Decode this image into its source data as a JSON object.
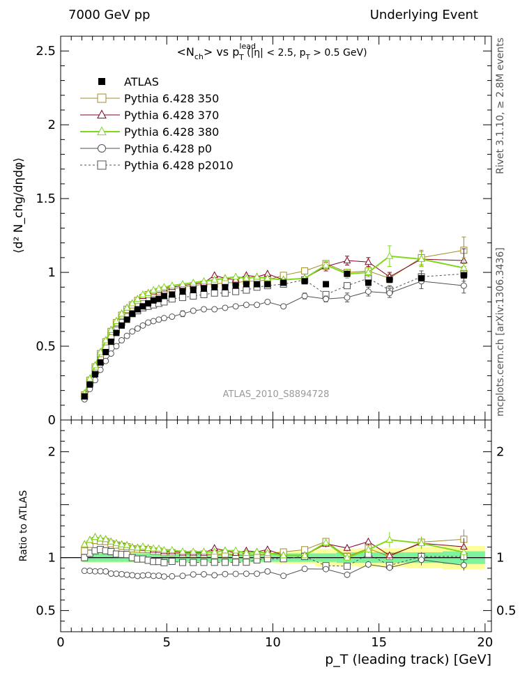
{
  "header": {
    "left": "7000 GeV pp",
    "right": "Underlying Event"
  },
  "side": {
    "top": "Rivet 3.1.10, ≥ 2.8M events",
    "bottom": "mcplots.cern.ch [arXiv:1306.3436]"
  },
  "title": {
    "part1": "<N",
    "part1_sub": "ch",
    "part2": "> vs p",
    "part2_sup": "lead",
    "part2_sub": "T",
    "part3": " (|η| < 2.5, p",
    "part3_sub": "T",
    "part4": " > 0.5 GeV)"
  },
  "ylabel_main": "⟨d² N_chg/dηdφ⟩",
  "ylabel_ratio": "Ratio to ATLAS",
  "xlabel": "p_T (leading track) [GeV]",
  "watermark": "ATLAS_2010_S8894728",
  "colors": {
    "atlas": "#000000",
    "p350": "#a08c28",
    "p370": "#800020",
    "p380": "#80d81a",
    "p0": "#505050",
    "p2010": "#505050",
    "band_inner": "#7ef29c",
    "band_outer": "#fdfd9a"
  },
  "chart_data": {
    "type": "scatter",
    "x": [
      1.125,
      1.375,
      1.625,
      1.875,
      2.125,
      2.375,
      2.625,
      2.875,
      3.125,
      3.375,
      3.625,
      3.875,
      4.125,
      4.375,
      4.625,
      4.875,
      5.25,
      5.75,
      6.25,
      6.75,
      7.25,
      7.75,
      8.25,
      8.75,
      9.25,
      9.75,
      10.5,
      11.5,
      12.5,
      13.5,
      14.5,
      15.5,
      17.0,
      19.0
    ],
    "xlim": [
      0,
      20.3
    ],
    "ylim_main": [
      0,
      2.6
    ],
    "ylim_ratio": [
      0.3,
      2.3
    ],
    "x_ticks": [
      0,
      5,
      10,
      15,
      20
    ],
    "y_ticks_main": [
      0,
      0.5,
      1,
      1.5,
      2,
      2.5
    ],
    "y_ticks_ratio": [
      0.5,
      1,
      2
    ],
    "series": [
      {
        "name": "ATLAS",
        "key": "atlas",
        "marker": "filled-square",
        "values": [
          0.16,
          0.24,
          0.31,
          0.39,
          0.46,
          0.53,
          0.59,
          0.64,
          0.68,
          0.72,
          0.75,
          0.77,
          0.79,
          0.81,
          0.82,
          0.84,
          0.85,
          0.87,
          0.88,
          0.89,
          0.9,
          0.9,
          0.91,
          0.92,
          0.92,
          0.92,
          0.93,
          0.94,
          0.92,
          0.99,
          0.93,
          0.95,
          0.96,
          0.98
        ]
      },
      {
        "name": "Pythia 6.428 350",
        "key": "p350",
        "marker": "open-square",
        "values": [
          0.17,
          0.27,
          0.36,
          0.45,
          0.53,
          0.6,
          0.66,
          0.71,
          0.75,
          0.78,
          0.81,
          0.83,
          0.85,
          0.86,
          0.87,
          0.88,
          0.89,
          0.9,
          0.91,
          0.92,
          0.92,
          0.93,
          0.93,
          0.94,
          0.94,
          0.95,
          0.98,
          1.01,
          1.06,
          1.0,
          1.01,
          0.96,
          1.1,
          1.15
        ],
        "errors": [
          0,
          0,
          0,
          0,
          0,
          0,
          0,
          0,
          0,
          0,
          0,
          0,
          0,
          0,
          0,
          0,
          0,
          0,
          0,
          0,
          0,
          0,
          0,
          0,
          0,
          0,
          0,
          0,
          0.02,
          0.02,
          0.03,
          0.03,
          0.05,
          0.09
        ]
      },
      {
        "name": "Pythia 6.428 370",
        "key": "p370",
        "marker": "open-triangle",
        "values": [
          0.18,
          0.28,
          0.37,
          0.46,
          0.54,
          0.61,
          0.67,
          0.72,
          0.76,
          0.79,
          0.82,
          0.84,
          0.86,
          0.87,
          0.88,
          0.89,
          0.9,
          0.91,
          0.92,
          0.93,
          0.98,
          0.96,
          0.95,
          0.98,
          0.97,
          0.99,
          0.95,
          0.96,
          1.04,
          1.08,
          1.07,
          0.97,
          1.09,
          1.08
        ],
        "errors": [
          0,
          0,
          0,
          0,
          0,
          0,
          0,
          0,
          0,
          0,
          0,
          0,
          0,
          0,
          0,
          0,
          0,
          0,
          0,
          0,
          0,
          0,
          0,
          0,
          0,
          0,
          0,
          0,
          0.03,
          0.03,
          0.03,
          0.03,
          0.05,
          0.08
        ]
      },
      {
        "name": "Pythia 6.428 380",
        "key": "p380",
        "marker": "open-triangle",
        "values": [
          0.18,
          0.28,
          0.37,
          0.46,
          0.54,
          0.61,
          0.67,
          0.72,
          0.76,
          0.79,
          0.82,
          0.85,
          0.86,
          0.88,
          0.89,
          0.9,
          0.91,
          0.92,
          0.93,
          0.94,
          0.95,
          0.96,
          0.97,
          0.96,
          0.97,
          0.96,
          0.95,
          0.96,
          1.05,
          0.99,
          1.0,
          1.11,
          1.09,
          1.03
        ],
        "errors": [
          0,
          0,
          0,
          0,
          0,
          0,
          0,
          0,
          0,
          0,
          0,
          0,
          0,
          0,
          0,
          0,
          0,
          0,
          0,
          0,
          0,
          0,
          0,
          0,
          0,
          0,
          0,
          0,
          0.03,
          0.03,
          0.03,
          0.07,
          0.05,
          0.07
        ]
      },
      {
        "name": "Pythia 6.428 p0",
        "key": "p0",
        "marker": "open-circle",
        "values": [
          0.14,
          0.21,
          0.27,
          0.34,
          0.4,
          0.45,
          0.5,
          0.54,
          0.57,
          0.6,
          0.62,
          0.64,
          0.66,
          0.67,
          0.68,
          0.69,
          0.7,
          0.72,
          0.74,
          0.75,
          0.75,
          0.76,
          0.77,
          0.78,
          0.78,
          0.8,
          0.77,
          0.84,
          0.82,
          0.83,
          0.87,
          0.86,
          0.94,
          0.91
        ],
        "errors": [
          0,
          0,
          0,
          0,
          0,
          0,
          0,
          0,
          0,
          0,
          0,
          0,
          0,
          0,
          0,
          0,
          0,
          0.02,
          0,
          0,
          0,
          0,
          0,
          0,
          0,
          0,
          0,
          0.02,
          0.02,
          0.03,
          0.03,
          0.03,
          0.05,
          0.05
        ]
      },
      {
        "name": "Pythia 6.428 p2010",
        "key": "p2010",
        "marker": "open-square-dashed",
        "values": [
          0.16,
          0.25,
          0.33,
          0.42,
          0.49,
          0.56,
          0.61,
          0.66,
          0.7,
          0.72,
          0.74,
          0.76,
          0.77,
          0.78,
          0.79,
          0.8,
          0.82,
          0.83,
          0.84,
          0.85,
          0.86,
          0.86,
          0.87,
          0.88,
          0.9,
          0.91,
          0.92,
          0.95,
          0.85,
          0.91,
          0.96,
          0.88,
          0.97,
          0.99
        ],
        "errors": [
          0,
          0,
          0,
          0,
          0,
          0,
          0,
          0,
          0,
          0,
          0,
          0,
          0,
          0,
          0,
          0,
          0,
          0,
          0,
          0,
          0,
          0,
          0,
          0,
          0,
          0,
          0,
          0.02,
          0.02,
          0.02,
          0.03,
          0.03,
          0.04,
          0.05
        ]
      }
    ],
    "ratio_band": {
      "inner": [
        0.04,
        0.04,
        0.04,
        0.04,
        0.04,
        0.04,
        0.04,
        0.04,
        0.04,
        0.04,
        0.04,
        0.04,
        0.04,
        0.04,
        0.04,
        0.04,
        0.04,
        0.04,
        0.04,
        0.04,
        0.04,
        0.04,
        0.04,
        0.04,
        0.04,
        0.04,
        0.04,
        0.04,
        0.04,
        0.05,
        0.05,
        0.05,
        0.05,
        0.06
      ],
      "outer": [
        0.05,
        0.05,
        0.05,
        0.05,
        0.05,
        0.05,
        0.05,
        0.05,
        0.05,
        0.05,
        0.05,
        0.05,
        0.05,
        0.05,
        0.05,
        0.05,
        0.05,
        0.05,
        0.05,
        0.05,
        0.05,
        0.05,
        0.05,
        0.05,
        0.05,
        0.05,
        0.06,
        0.06,
        0.08,
        0.08,
        0.09,
        0.09,
        0.1,
        0.11
      ]
    }
  }
}
